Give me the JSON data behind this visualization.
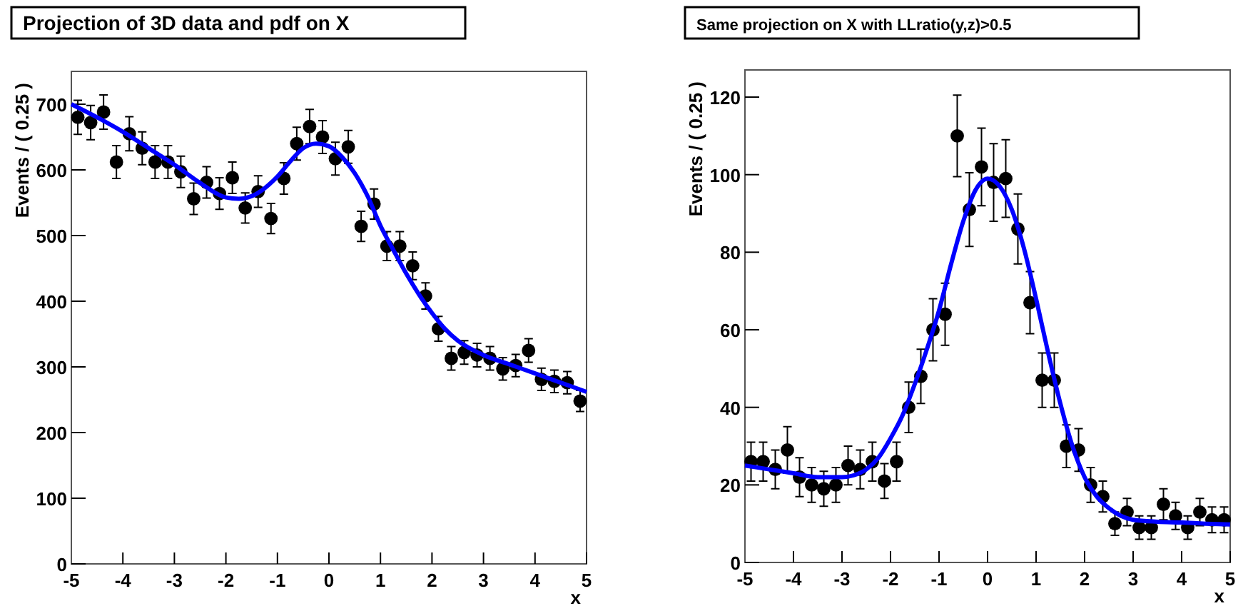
{
  "chart_data": [
    {
      "type": "scatter",
      "title": "Projection of 3D data and pdf on X",
      "xlabel": "x",
      "ylabel": "Events / ( 0.25 )",
      "xlim": [
        -5,
        5
      ],
      "xticks": [
        -5,
        -4,
        -3,
        -2,
        -1,
        0,
        1,
        2,
        3,
        4,
        5
      ],
      "ylim": [
        0,
        750
      ],
      "yticks": [
        0,
        100,
        200,
        300,
        400,
        500,
        600,
        700
      ],
      "grid": false,
      "marker": "circle",
      "series": [
        {
          "color": "#000000",
          "x": [
            -4.875,
            -4.625,
            -4.375,
            -4.125,
            -3.875,
            -3.625,
            -3.375,
            -3.125,
            -2.875,
            -2.625,
            -2.375,
            -2.125,
            -1.875,
            -1.625,
            -1.375,
            -1.125,
            -0.875,
            -0.625,
            -0.375,
            -0.125,
            0.125,
            0.375,
            0.625,
            0.875,
            1.125,
            1.375,
            1.625,
            1.875,
            2.125,
            2.375,
            2.625,
            2.875,
            3.125,
            3.375,
            3.625,
            3.875,
            4.125,
            4.375,
            4.625,
            4.875
          ],
          "values": [
            680,
            672,
            688,
            612,
            655,
            633,
            612,
            612,
            597,
            556,
            581,
            564,
            588,
            542,
            567,
            526,
            587,
            640,
            666,
            650,
            617,
            635,
            514,
            548,
            484,
            484,
            454,
            408,
            358,
            313,
            322,
            318,
            313,
            297,
            302,
            325,
            281,
            278,
            276,
            248
          ],
          "errors": [
            26,
            26,
            26,
            25,
            26,
            25,
            25,
            25,
            24,
            24,
            24,
            24,
            24,
            23,
            24,
            23,
            24,
            25,
            26,
            25,
            25,
            25,
            23,
            23,
            22,
            22,
            21,
            20,
            19,
            18,
            18,
            18,
            18,
            17,
            17,
            18,
            17,
            17,
            17,
            16
          ]
        },
        {
          "type": "line",
          "color": "#0000ff",
          "marker": "none",
          "line_style": "solid",
          "x": [
            -5,
            -4.5,
            -4,
            -3.5,
            -3,
            -2.5,
            -2,
            -1.75,
            -1.5,
            -1.25,
            -1,
            -0.75,
            -0.5,
            -0.25,
            0,
            0.25,
            0.5,
            0.75,
            1,
            1.25,
            1.5,
            1.75,
            2,
            2.25,
            2.5,
            3,
            3.5,
            4,
            4.5,
            5
          ],
          "values": [
            700,
            680,
            658,
            633,
            608,
            580,
            558,
            556,
            560,
            572,
            590,
            613,
            633,
            640,
            636,
            620,
            595,
            560,
            515,
            478,
            442,
            410,
            382,
            358,
            340,
            318,
            304,
            290,
            276,
            262
          ]
        }
      ]
    },
    {
      "type": "scatter",
      "title": "Same projection on X with LLratio(y,z)>0.5",
      "xlabel": "x",
      "ylabel": "Events / ( 0.25 )",
      "xlim": [
        -5,
        5
      ],
      "xticks": [
        -5,
        -4,
        -3,
        -2,
        -1,
        0,
        1,
        2,
        3,
        4,
        5
      ],
      "ylim": [
        0,
        127
      ],
      "yticks": [
        0,
        20,
        40,
        60,
        80,
        100,
        120
      ],
      "grid": false,
      "marker": "circle",
      "series": [
        {
          "color": "#000000",
          "x": [
            -4.875,
            -4.625,
            -4.375,
            -4.125,
            -3.875,
            -3.625,
            -3.375,
            -3.125,
            -2.875,
            -2.625,
            -2.375,
            -2.125,
            -1.875,
            -1.625,
            -1.375,
            -1.125,
            -0.875,
            -0.625,
            -0.375,
            -0.125,
            0.125,
            0.375,
            0.625,
            0.875,
            1.125,
            1.375,
            1.625,
            1.875,
            2.125,
            2.375,
            2.625,
            2.875,
            3.125,
            3.375,
            3.625,
            3.875,
            4.125,
            4.375,
            4.625,
            4.875
          ],
          "values": [
            26,
            26,
            24,
            29,
            22,
            20,
            19,
            20,
            25,
            24,
            26,
            21,
            26,
            40,
            48,
            60,
            64,
            110,
            91,
            102,
            98,
            99,
            86,
            67,
            47,
            47,
            30,
            29,
            20,
            17,
            10,
            13,
            9,
            9,
            15,
            12,
            9,
            13,
            11,
            11
          ],
          "errors": [
            5,
            5,
            5,
            6,
            5,
            4.5,
            4.5,
            4.5,
            5,
            5,
            5,
            4.5,
            5,
            6.5,
            7,
            8,
            8,
            10.5,
            9.5,
            10,
            10,
            10,
            9,
            8,
            7,
            7,
            5.5,
            5.5,
            4.5,
            4,
            3,
            3.5,
            3,
            3,
            4,
            3.5,
            3,
            3.5,
            3.3,
            3.3
          ]
        },
        {
          "type": "line",
          "color": "#0000ff",
          "marker": "none",
          "line_style": "solid",
          "x": [
            -5,
            -4.5,
            -4,
            -3.5,
            -3,
            -2.75,
            -2.5,
            -2.25,
            -2,
            -1.75,
            -1.5,
            -1.25,
            -1,
            -0.75,
            -0.5,
            -0.25,
            0,
            0.25,
            0.5,
            0.75,
            1,
            1.25,
            1.5,
            1.75,
            2,
            2.25,
            2.5,
            2.75,
            3,
            3.5,
            4,
            4.5,
            5
          ],
          "values": [
            25,
            24,
            23,
            22,
            22,
            22.5,
            24,
            27,
            32,
            38,
            46,
            55,
            65,
            77,
            88,
            96,
            99,
            97,
            91,
            81,
            68,
            54,
            41,
            30,
            22,
            17,
            14,
            12,
            11,
            10.5,
            10.3,
            10,
            9.8
          ]
        }
      ]
    }
  ]
}
